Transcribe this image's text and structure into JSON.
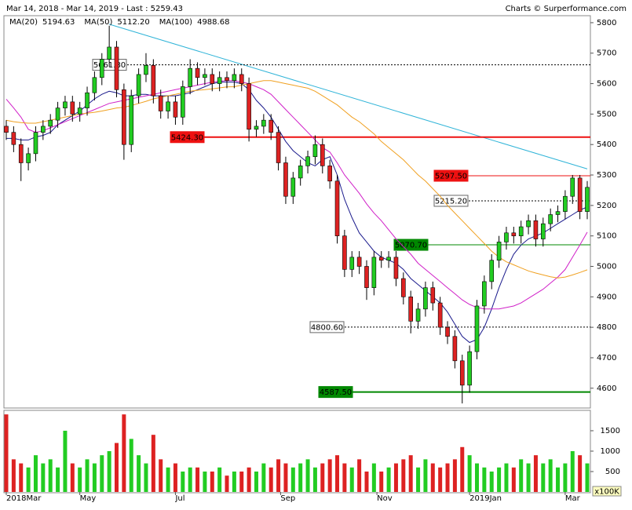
{
  "chart_data": {
    "type": "candlestick",
    "title": "Mar 14, 2018 - Mar 14, 2019 - Last : 5259.43",
    "credit": "Charts © Surperformance.com",
    "xlim": [
      0,
      79
    ],
    "xticks": [
      {
        "value": 0,
        "label": "2018Mar"
      },
      {
        "value": 10,
        "label": "May"
      },
      {
        "value": 23,
        "label": "Jul"
      },
      {
        "value": 37.3,
        "label": "Sep"
      },
      {
        "value": 50.4,
        "label": "Nov"
      },
      {
        "value": 63,
        "label": "2019Jan"
      },
      {
        "value": 76,
        "label": "Mar"
      }
    ],
    "ylim": [
      4535,
      5823
    ],
    "yticks": [
      4600,
      4700,
      4800,
      4900,
      5000,
      5100,
      5200,
      5300,
      5400,
      5500,
      5600,
      5700,
      5800
    ],
    "up_color": "#22cc22",
    "down_color": "#dd2222",
    "candles": {
      "open": [
        5460,
        5440,
        5400,
        5340,
        5370,
        5440,
        5460,
        5480,
        5520,
        5540,
        5500,
        5520,
        5570,
        5620,
        5680,
        5720,
        5580,
        5400,
        5560,
        5630,
        5660,
        5560,
        5510,
        5540,
        5490,
        5590,
        5650,
        5620,
        5630,
        5600,
        5620,
        5610,
        5630,
        5600,
        5450,
        5460,
        5480,
        5440,
        5340,
        5230,
        5290,
        5330,
        5360,
        5400,
        5330,
        5280,
        5100,
        4990,
        5030,
        5000,
        4930,
        5030,
        5020,
        5030,
        4960,
        4900,
        4820,
        4860,
        4930,
        4880,
        4800,
        4770,
        4690,
        4610,
        4720,
        4870,
        4950,
        5020,
        5080,
        5110,
        5100,
        5130,
        5150,
        5090,
        5140,
        5170,
        5180,
        5230,
        5290,
        5180
      ],
      "high": [
        5480,
        5460,
        5420,
        5390,
        5460,
        5480,
        5500,
        5540,
        5560,
        5560,
        5540,
        5590,
        5640,
        5700,
        5790,
        5740,
        5600,
        5580,
        5650,
        5700,
        5680,
        5580,
        5560,
        5560,
        5610,
        5680,
        5670,
        5650,
        5650,
        5640,
        5640,
        5650,
        5650,
        5620,
        5480,
        5500,
        5500,
        5460,
        5360,
        5310,
        5350,
        5380,
        5430,
        5420,
        5350,
        5300,
        5120,
        5050,
        5050,
        5020,
        5050,
        5050,
        5050,
        5050,
        4980,
        4920,
        4880,
        4950,
        4950,
        4900,
        4820,
        4790,
        4710,
        4740,
        4890,
        4970,
        5040,
        5100,
        5130,
        5130,
        5150,
        5170,
        5170,
        5160,
        5190,
        5200,
        5250,
        5300,
        5300,
        5280
      ],
      "low": [
        5415,
        5375,
        5280,
        5315,
        5345,
        5415,
        5435,
        5455,
        5495,
        5475,
        5475,
        5495,
        5545,
        5595,
        5655,
        5555,
        5350,
        5375,
        5535,
        5605,
        5535,
        5485,
        5485,
        5465,
        5465,
        5565,
        5595,
        5595,
        5575,
        5575,
        5585,
        5585,
        5575,
        5410,
        5425,
        5435,
        5415,
        5315,
        5205,
        5205,
        5265,
        5305,
        5335,
        5305,
        5255,
        5075,
        4965,
        4965,
        4975,
        4890,
        4905,
        4995,
        4995,
        4935,
        4875,
        4780,
        4795,
        4835,
        4855,
        4775,
        4745,
        4665,
        4550,
        4585,
        4695,
        4845,
        4925,
        4995,
        5055,
        5075,
        5075,
        5105,
        5065,
        5065,
        5115,
        5145,
        5155,
        5205,
        5155,
        5155
      ],
      "close": [
        5440,
        5400,
        5340,
        5370,
        5440,
        5460,
        5480,
        5520,
        5540,
        5500,
        5520,
        5570,
        5620,
        5680,
        5720,
        5580,
        5400,
        5560,
        5630,
        5660,
        5560,
        5510,
        5540,
        5490,
        5590,
        5650,
        5620,
        5630,
        5600,
        5620,
        5610,
        5630,
        5600,
        5450,
        5460,
        5480,
        5440,
        5340,
        5230,
        5290,
        5330,
        5360,
        5400,
        5330,
        5280,
        5100,
        4990,
        5030,
        5000,
        4930,
        5030,
        5020,
        5030,
        4960,
        4900,
        4820,
        4860,
        4930,
        4880,
        4800,
        4770,
        4690,
        4610,
        4720,
        4870,
        4950,
        5020,
        5080,
        5110,
        5100,
        5130,
        5150,
        5090,
        5140,
        5170,
        5180,
        5230,
        5290,
        5180,
        5259.43
      ]
    },
    "series": [
      {
        "name": "MA(20)",
        "color": "#1a1a8c",
        "last_label": "5194.63",
        "values": [
          5420,
          5420,
          5415,
          5415,
          5425,
          5430,
          5440,
          5465,
          5480,
          5495,
          5510,
          5530,
          5550,
          5565,
          5575,
          5570,
          5560,
          5560,
          5565,
          5565,
          5560,
          5560,
          5560,
          5560,
          5565,
          5570,
          5580,
          5590,
          5600,
          5605,
          5605,
          5605,
          5600,
          5580,
          5545,
          5520,
          5490,
          5450,
          5410,
          5380,
          5360,
          5340,
          5330,
          5350,
          5360,
          5300,
          5220,
          5160,
          5110,
          5080,
          5050,
          5030,
          5020,
          5010,
          4990,
          4960,
          4940,
          4920,
          4900,
          4880,
          4850,
          4810,
          4770,
          4750,
          4760,
          4800,
          4860,
          4930,
          4990,
          5040,
          5070,
          5090,
          5100,
          5110,
          5125,
          5140,
          5155,
          5170,
          5185,
          5194.63
        ]
      },
      {
        "name": "MA(50)",
        "color": "#d020c8",
        "last_label": "5112.20",
        "values": [
          5549,
          5520,
          5490,
          5450,
          5440,
          5445,
          5455,
          5465,
          5475,
          5485,
          5495,
          5505,
          5515,
          5525,
          5535,
          5540,
          5545,
          5550,
          5555,
          5560,
          5565,
          5570,
          5575,
          5580,
          5585,
          5590,
          5595,
          5600,
          5605,
          5608,
          5610,
          5610,
          5605,
          5600,
          5590,
          5580,
          5565,
          5540,
          5515,
          5490,
          5465,
          5440,
          5415,
          5390,
          5375,
          5340,
          5300,
          5270,
          5240,
          5205,
          5175,
          5150,
          5120,
          5090,
          5065,
          5040,
          5010,
          4990,
          4970,
          4950,
          4930,
          4910,
          4890,
          4875,
          4865,
          4860,
          4860,
          4860,
          4865,
          4870,
          4880,
          4895,
          4910,
          4925,
          4945,
          4965,
          4990,
          5030,
          5070,
          5112.2
        ]
      },
      {
        "name": "MA(100)",
        "color": "#f0a020",
        "last_label": "4988.68",
        "values": [
          5480,
          5475,
          5472,
          5470,
          5470,
          5475,
          5480,
          5485,
          5490,
          5495,
          5500,
          5503,
          5506,
          5510,
          5515,
          5520,
          5522,
          5528,
          5535,
          5542,
          5550,
          5555,
          5560,
          5565,
          5570,
          5575,
          5578,
          5580,
          5583,
          5586,
          5589,
          5590,
          5595,
          5600,
          5605,
          5610,
          5610,
          5605,
          5600,
          5595,
          5590,
          5585,
          5575,
          5560,
          5545,
          5530,
          5510,
          5490,
          5475,
          5455,
          5435,
          5410,
          5390,
          5370,
          5350,
          5325,
          5300,
          5280,
          5255,
          5230,
          5200,
          5175,
          5150,
          5125,
          5100,
          5075,
          5050,
          5030,
          5015,
          5005,
          4995,
          4985,
          4978,
          4972,
          4966,
          4962,
          4965,
          4972,
          4980,
          4988.68
        ]
      }
    ],
    "levels": [
      {
        "value": 5661.8,
        "label": "5661.80",
        "color": "#000000",
        "style": "dotted",
        "weight": 1
      },
      {
        "value": 5424.3,
        "label": "5424.30",
        "color": "#ee1111",
        "style": "solid",
        "weight": 2
      },
      {
        "value": 5297.5,
        "label": "5297.50",
        "color": "#ee1111",
        "style": "solid",
        "weight": 1
      },
      {
        "value": 5215.2,
        "label": "5215.20",
        "color": "#000000",
        "style": "dotted",
        "weight": 1
      },
      {
        "value": 5070.7,
        "label": "5070.70",
        "color": "#008800",
        "style": "solid",
        "weight": 1
      },
      {
        "value": 4800.6,
        "label": "4800.60",
        "color": "#000000",
        "style": "dotted",
        "weight": 1
      },
      {
        "value": 4587.5,
        "label": "4587.50",
        "color": "#008800",
        "style": "solid",
        "weight": 2
      }
    ],
    "trendline": {
      "color": "#30b4d8",
      "start": [
        14,
        5795
      ],
      "end": [
        79,
        5320
      ]
    },
    "volume": {
      "unit": "x100K",
      "ylim": [
        0,
        1980
      ],
      "yticks": [
        500,
        1000,
        1500
      ],
      "values": [
        1900,
        800,
        700,
        600,
        900,
        700,
        800,
        600,
        1500,
        700,
        600,
        800,
        700,
        900,
        1000,
        1200,
        1900,
        1300,
        900,
        700,
        1400,
        800,
        600,
        700,
        500,
        600,
        600,
        500,
        500,
        600,
        400,
        500,
        500,
        600,
        500,
        700,
        600,
        800,
        700,
        600,
        700,
        800,
        600,
        700,
        800,
        900,
        700,
        600,
        800,
        500,
        700,
        500,
        600,
        700,
        800,
        900,
        600,
        800,
        700,
        600,
        700,
        800,
        1100,
        900,
        700,
        600,
        500,
        600,
        700,
        600,
        800,
        700,
        900,
        700,
        800,
        600,
        700,
        1000,
        900,
        700
      ]
    }
  }
}
